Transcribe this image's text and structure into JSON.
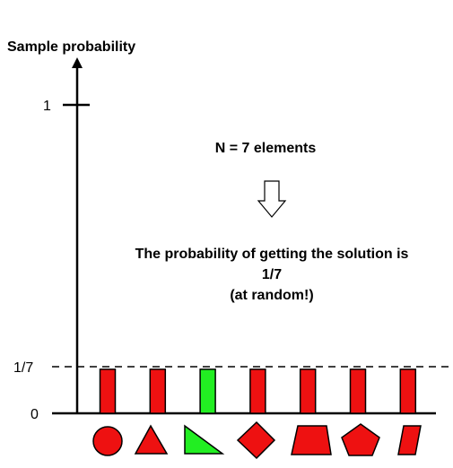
{
  "chart_data": {
    "type": "bar",
    "ylabel": "Sample probability",
    "y_ticks": [
      {
        "value": 1,
        "label": "1"
      },
      {
        "value": 0.142857,
        "label": "1/7"
      },
      {
        "value": 0,
        "label": "0"
      }
    ],
    "ylim": [
      0,
      1
    ],
    "reference_line": {
      "value": 0.142857,
      "style": "dashed"
    },
    "categories": [
      "circle",
      "triangle",
      "right-triangle",
      "diamond",
      "trapezoid",
      "pentagon",
      "parallelogram"
    ],
    "values": [
      0.142857,
      0.142857,
      0.142857,
      0.142857,
      0.142857,
      0.142857,
      0.142857
    ],
    "bar_colors": [
      "#ee1111",
      "#ee1111",
      "#22ee22",
      "#ee1111",
      "#ee1111",
      "#ee1111",
      "#ee1111"
    ],
    "highlighted_index": 2,
    "annotations": {
      "count_text": "N = 7 elements",
      "probability_line1": "The probability of getting the solution is",
      "probability_line2": "1/7",
      "probability_line3": "(at random!)"
    }
  },
  "colors": {
    "wrong": "#ee1111",
    "solution": "#22ee22",
    "outline": "#000000"
  }
}
